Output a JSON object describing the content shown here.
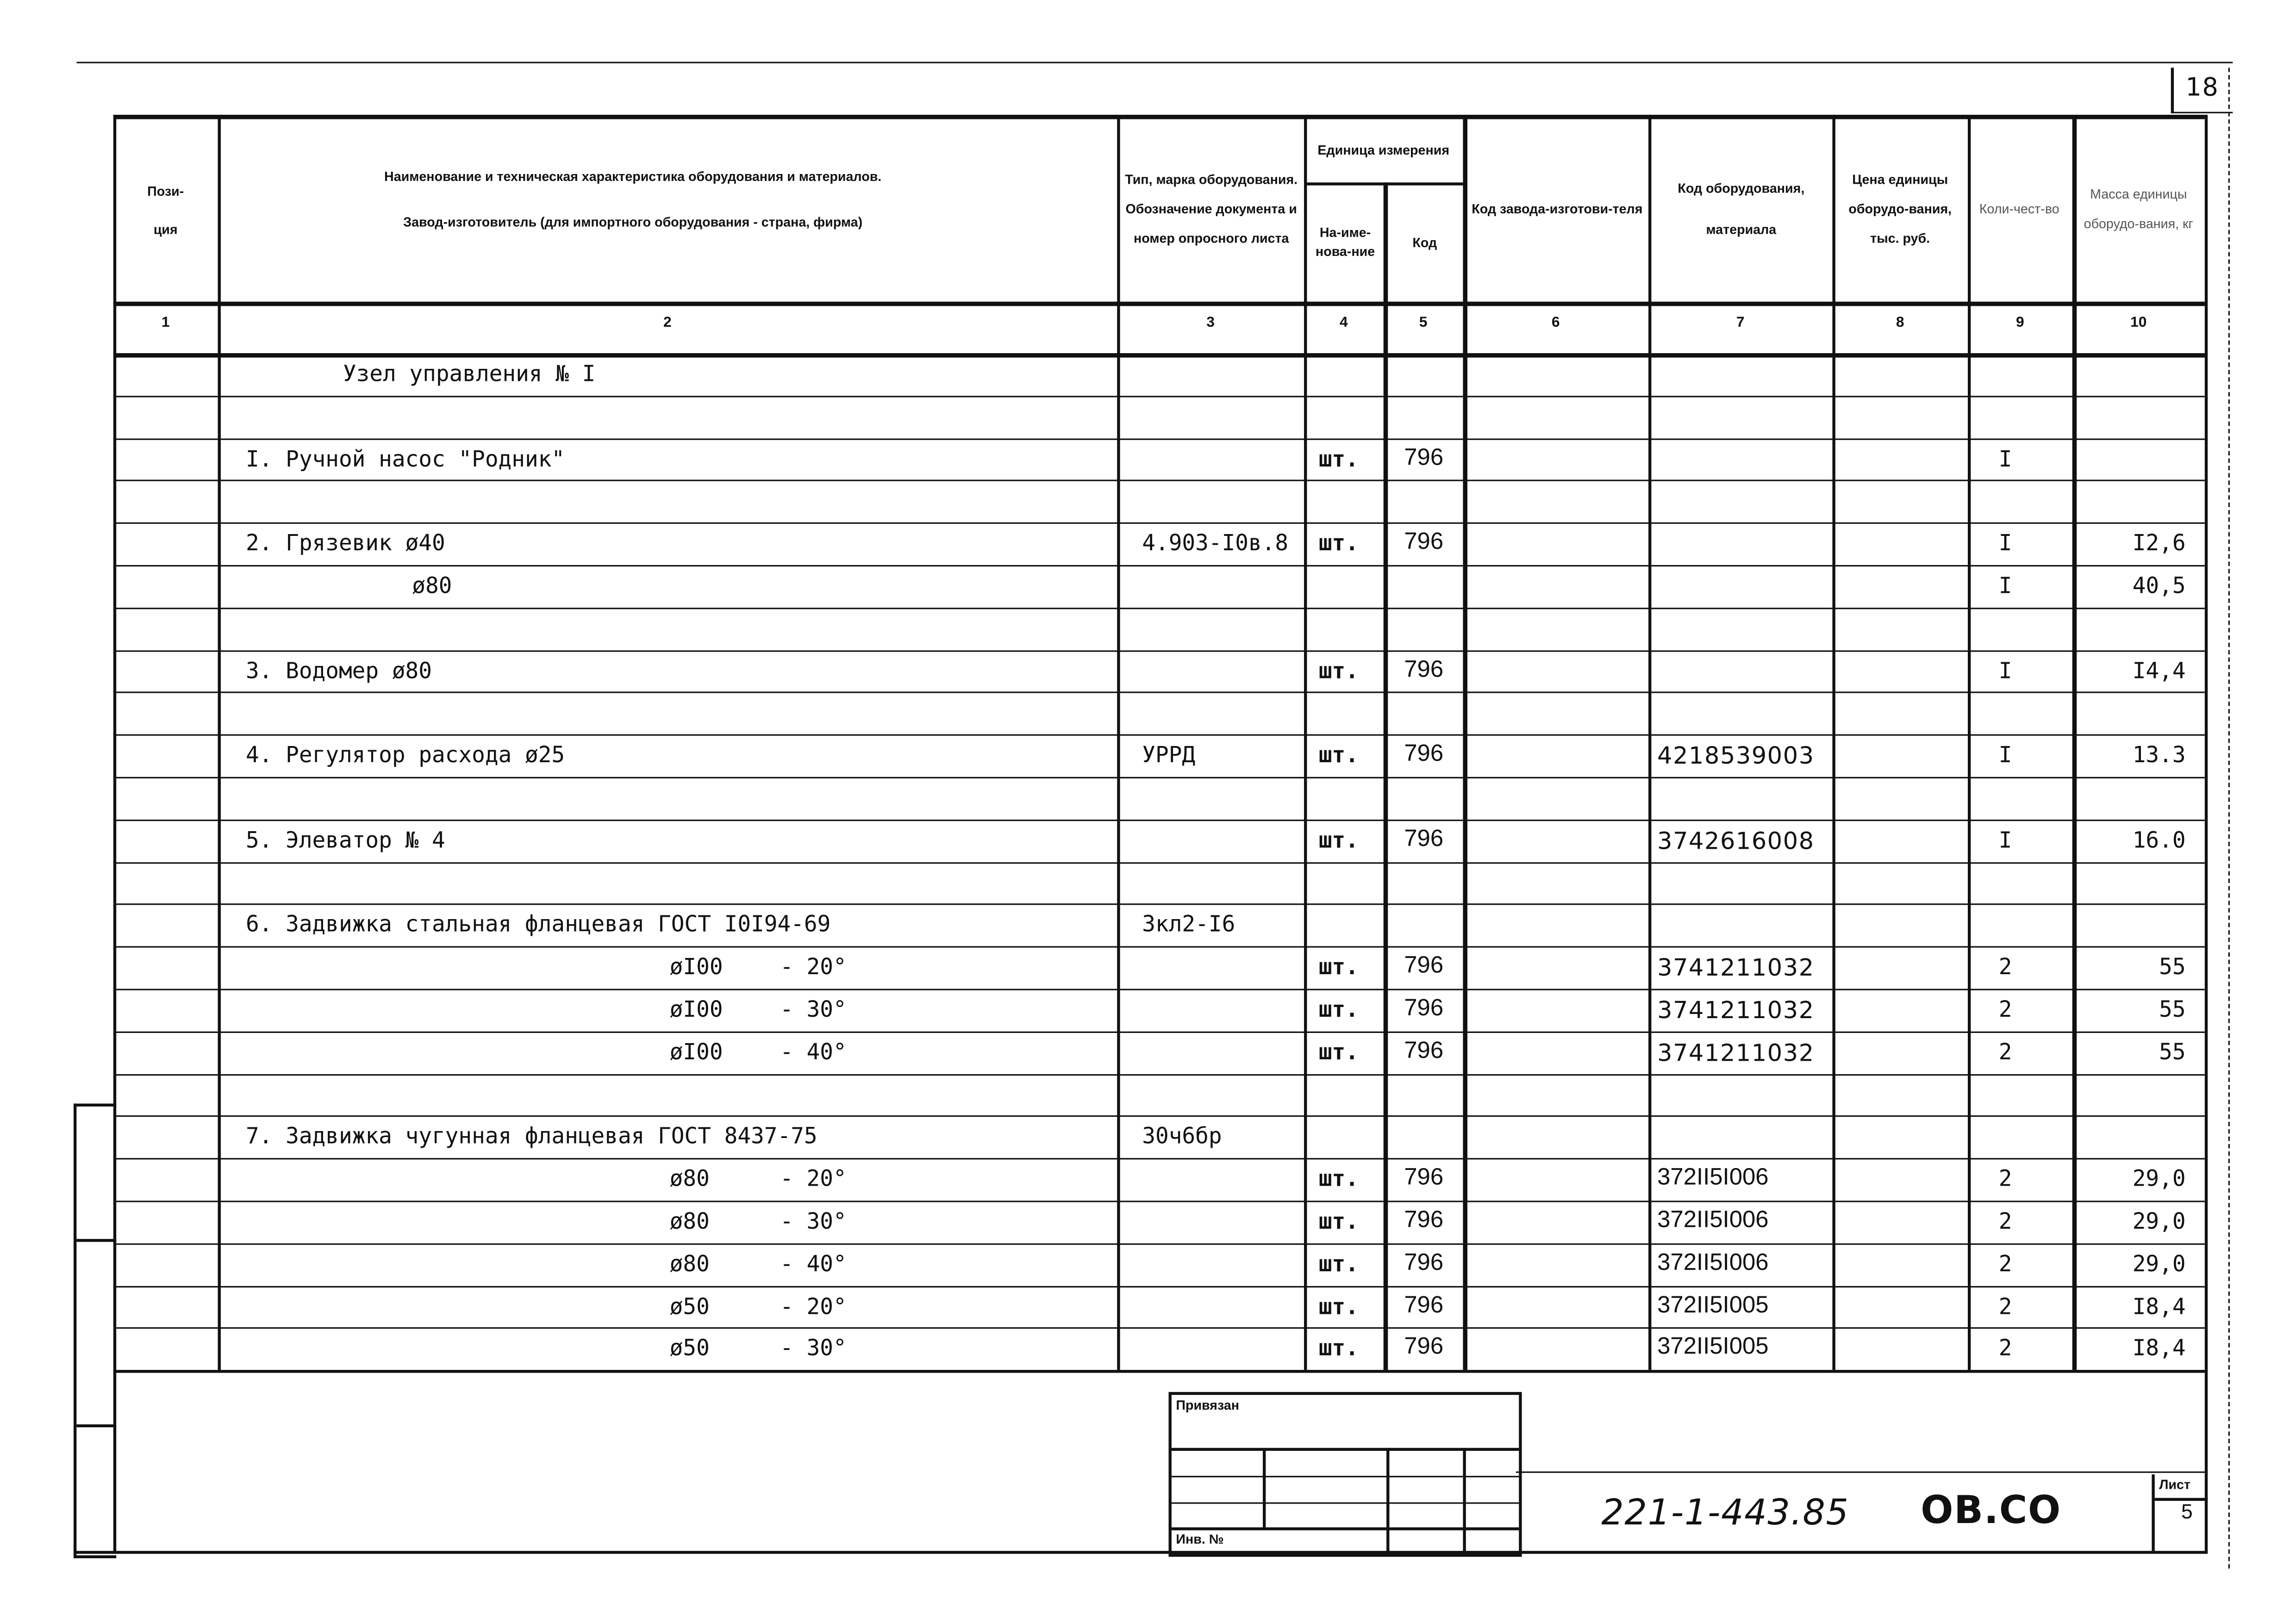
{
  "sheet_number": "18",
  "header": {
    "col1": "Пози-\nция",
    "col2_line1": "Наименование и техническая характеристика оборудования и материалов.",
    "col2_line2": "Завод-изготовитель (для импортного оборудования - страна, фирма)",
    "col3": "Тип, марка оборудования. Обозначение документа и номер опросного листа",
    "col45": "Единица измерения",
    "col4": "На-име-нова-ние",
    "col5": "Код",
    "col6": "Код завода-изготови-теля",
    "col7": "Код оборудования, материала",
    "col8": "Цена единицы оборудо-вания, тыс. руб.",
    "col9": "Коли-чест-во",
    "col10": "Масса единицы оборудо-вания, кг",
    "numbers": [
      "1",
      "2",
      "3",
      "4",
      "5",
      "6",
      "7",
      "8",
      "9",
      "10"
    ]
  },
  "rows": [
    {
      "name": "Узел управления № I",
      "indent": "title"
    },
    {},
    {
      "name": "I. Ручной насос \"Родник\"",
      "unit": "шт.",
      "code": "796",
      "qty": "I"
    },
    {},
    {
      "name": "2. Грязевик ø40",
      "type": "4.903-I0в.8",
      "unit": "шт.",
      "code": "796",
      "qty": "I",
      "mass": "I2,6"
    },
    {
      "name": "ø80",
      "indent": "sub",
      "qty": "I",
      "mass": "40,5"
    },
    {},
    {
      "name": "3. Водомер ø80",
      "unit": "шт.",
      "code": "796",
      "qty": "I",
      "mass": "I4,4"
    },
    {},
    {
      "name": "4. Регулятор расхода ø25",
      "type": "УРРД",
      "unit": "шт.",
      "code": "796",
      "equip": "4218539003",
      "qty": "I",
      "mass": "13.3"
    },
    {},
    {
      "name": "5. Элеватор № 4",
      "unit": "шт.",
      "code": "796",
      "equip": "3742616008",
      "qty": "I",
      "mass": "16.0"
    },
    {},
    {
      "name": "6. Задвижка стальная фланцевая ГОСТ I0I94-69",
      "type": "3кл2-I6"
    },
    {
      "name": "øI00",
      "angle": "- 20°",
      "indent": "dia",
      "unit": "шт.",
      "code": "796",
      "equip": "3741211032",
      "qty": "2",
      "mass": "55"
    },
    {
      "name": "øI00",
      "angle": "- 30°",
      "indent": "dia",
      "unit": "шт.",
      "code": "796",
      "equip": "3741211032",
      "qty": "2",
      "mass": "55"
    },
    {
      "name": "øI00",
      "angle": "- 40°",
      "indent": "dia",
      "unit": "шт.",
      "code": "796",
      "equip": "3741211032",
      "qty": "2",
      "mass": "55"
    },
    {},
    {
      "name": "7. Задвижка чугунная фланцевая ГОСТ 8437-75",
      "type": "30ч6бр"
    },
    {
      "name": "ø80",
      "angle": "- 20°",
      "indent": "dia",
      "unit": "шт.",
      "code": "796",
      "equip": "372II5I006",
      "qty": "2",
      "mass": "29,0"
    },
    {
      "name": "ø80",
      "angle": "- 30°",
      "indent": "dia",
      "unit": "шт.",
      "code": "796",
      "equip": "372II5I006",
      "qty": "2",
      "mass": "29,0"
    },
    {
      "name": "ø80",
      "angle": "- 40°",
      "indent": "dia",
      "unit": "шт.",
      "code": "796",
      "equip": "372II5I006",
      "qty": "2",
      "mass": "29,0"
    },
    {
      "name": "ø50",
      "angle": "- 20°",
      "indent": "dia",
      "unit": "шт.",
      "code": "796",
      "equip": "372II5I005",
      "qty": "2",
      "mass": "I8,4"
    },
    {
      "name": "ø50",
      "angle": "- 30°",
      "indent": "dia",
      "unit": "шт.",
      "code": "796",
      "equip": "372II5I005",
      "qty": "2",
      "mass": "I8,4"
    }
  ],
  "title_block": {
    "bound_label": "Привязан",
    "inv_label": "Инв. №",
    "doc_code": "221-1-443.85",
    "section": "ОВ.СО",
    "sheet_label": "Лист",
    "sheet": "5"
  }
}
